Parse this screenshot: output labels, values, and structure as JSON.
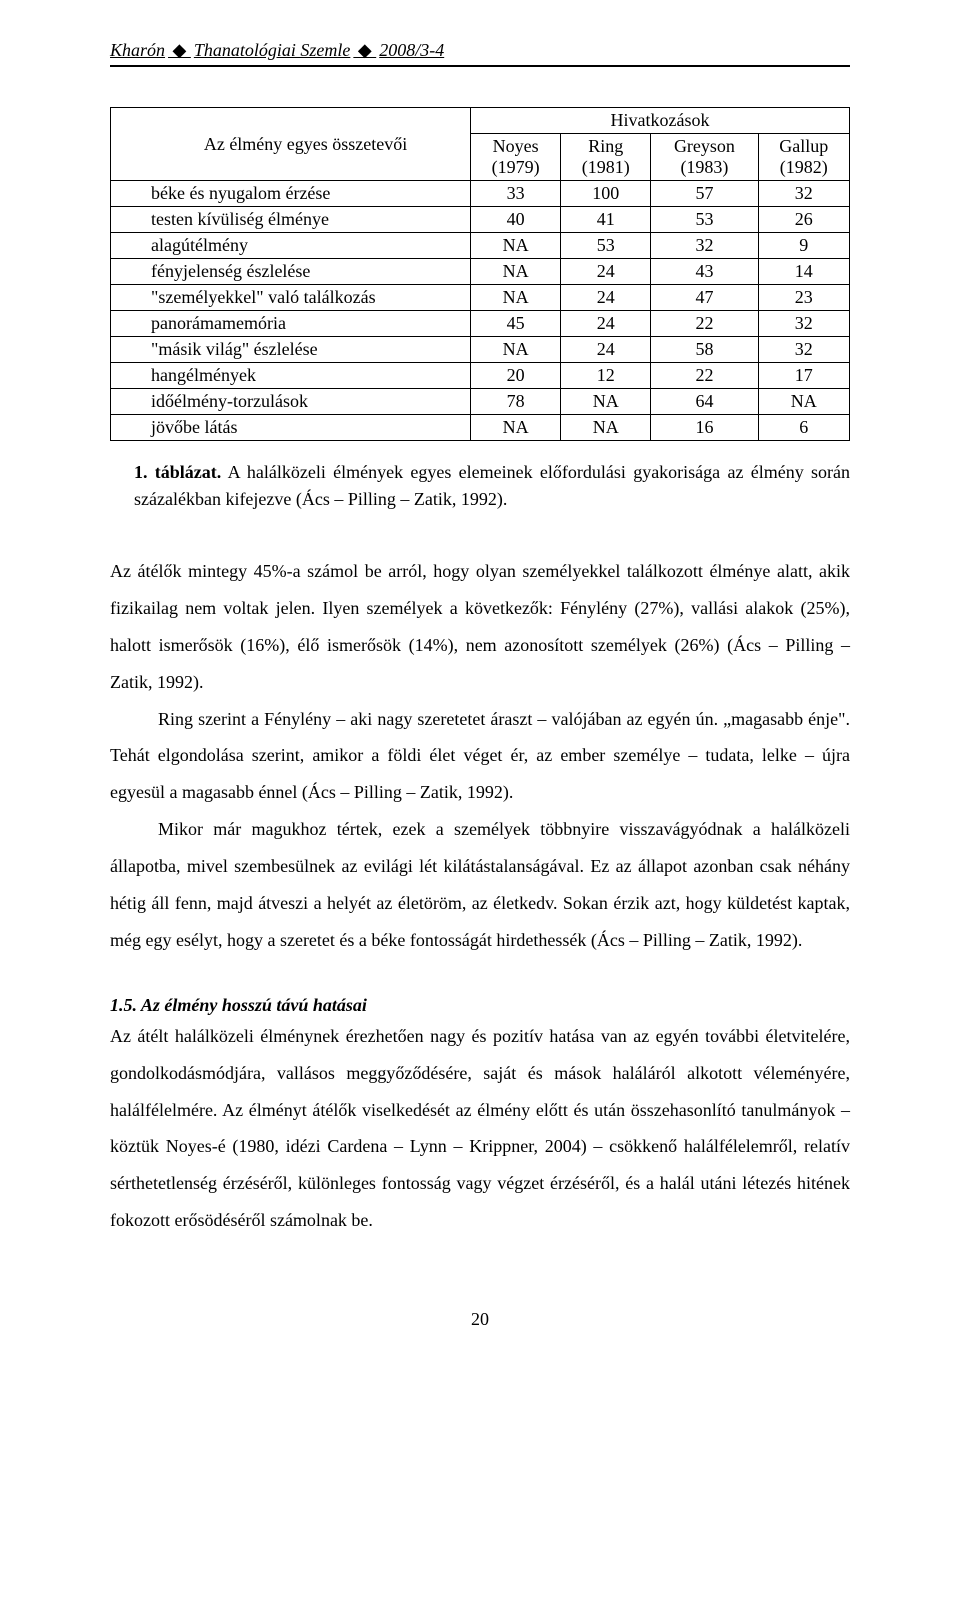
{
  "header": {
    "journal": "Kharón",
    "subtitle": "Thanatológiai Szemle",
    "issue": "2008/3-4"
  },
  "table": {
    "type": "table",
    "header_main_left": "Az élmény egyes összetevői",
    "header_main_right": "Hivatkozások",
    "columns": [
      {
        "label": "Noyes",
        "year": "(1979)"
      },
      {
        "label": "Ring",
        "year": "(1981)"
      },
      {
        "label": "Greyson",
        "year": "(1983)"
      },
      {
        "label": "Gallup",
        "year": "(1982)"
      }
    ],
    "rows": [
      {
        "label": "béke és nyugalom érzése",
        "v": [
          "33",
          "100",
          "57",
          "32"
        ]
      },
      {
        "label": "testen kívüliség élménye",
        "v": [
          "40",
          "41",
          "53",
          "26"
        ]
      },
      {
        "label": "alagútélmény",
        "v": [
          "NA",
          "53",
          "32",
          "9"
        ]
      },
      {
        "label": "fényjelenség észlelése",
        "v": [
          "NA",
          "24",
          "43",
          "14"
        ]
      },
      {
        "label": "\"személyekkel\" való találkozás",
        "v": [
          "NA",
          "24",
          "47",
          "23"
        ]
      },
      {
        "label": "panorámamemória",
        "v": [
          "45",
          "24",
          "22",
          "32"
        ]
      },
      {
        "label": "\"másik világ\" észlelése",
        "v": [
          "NA",
          "24",
          "58",
          "32"
        ]
      },
      {
        "label": "hangélmények",
        "v": [
          "20",
          "12",
          "22",
          "17"
        ]
      },
      {
        "label": "időélmény-torzulások",
        "v": [
          "78",
          "NA",
          "64",
          "NA"
        ]
      },
      {
        "label": "jövőbe látás",
        "v": [
          "NA",
          "NA",
          "16",
          "6"
        ]
      }
    ],
    "colors": {
      "border": "#000000",
      "background": "#ffffff",
      "text": "#000000"
    },
    "fontsize": 18
  },
  "caption": {
    "index": "1. táblázat.",
    "text": "A halálközeli élmények egyes elemeinek előfordulási gyakorisága az élmény során százalékban kifejezve (Ács – Pilling – Zatik, 1992)."
  },
  "paragraphs": {
    "p1": "Az átélők mintegy 45%-a számol be arról, hogy olyan személyekkel találkozott élménye alatt, akik fizikailag nem voltak jelen. Ilyen személyek a következők: Fénylény (27%), vallási alakok (25%), halott ismerősök (16%), élő ismerősök (14%), nem azonosított személyek (26%) (Ács – Pilling – Zatik, 1992).",
    "p2": "Ring szerint a Fénylény – aki nagy szeretetet áraszt – valójában az egyén ún. „magasabb énje\". Tehát elgondolása szerint, amikor a földi élet véget ér, az ember személye – tudata, lelke – újra egyesül a magasabb énnel (Ács – Pilling – Zatik, 1992).",
    "p3": "Mikor már magukhoz tértek, ezek a személyek többnyire visszavágyódnak a halálközeli állapotba, mivel szembesülnek az evilági lét kilátástalanságával. Ez az állapot azonban csak néhány hétig áll fenn, majd átveszi a helyét az életöröm, az életkedv. Sokan érzik azt, hogy küldetést kaptak, még egy esélyt, hogy a szeretet és a béke fontosságát hirdethessék (Ács – Pilling – Zatik, 1992)."
  },
  "section": {
    "title": "1.5. Az élmény hosszú távú hatásai",
    "body": "Az átélt halálközeli élménynek érezhetően nagy és pozitív hatása van az egyén további életvitelére, gondolkodásmódjára, vallásos meggyőződésére, saját és mások haláláról alkotott véleményére, halálfélelmére. Az élményt átélők viselkedését az élmény előtt és után összehasonlító tanulmányok – köztük Noyes-é (1980, idézi Cardena – Lynn – Krippner, 2004) – csökkenő halálfélelemről, relatív sérthetetlenség érzéséről, különleges fontosság vagy végzet érzéséről, és a halál utáni létezés hitének fokozott erősödéséről számolnak be."
  },
  "page_number": "20"
}
